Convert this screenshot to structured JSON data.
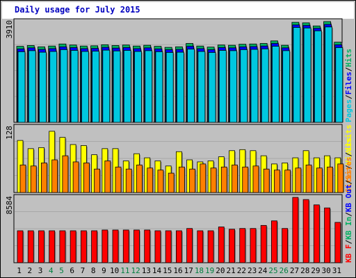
{
  "title": "Daily usage for July 2015",
  "colors": {
    "pages": "#00c8e0",
    "files": "#0000ff",
    "hits": "#00b060",
    "visits": "#ffff00",
    "sites": "#ff8000",
    "kbin": "#00b060",
    "kbout": "#0000ff",
    "kbf": "#ff0000",
    "weekend": "#008040",
    "panel": "#c0c0c0",
    "text": "#000000"
  },
  "chart_data": [
    {
      "type": "bar",
      "panel": "hits",
      "axis_max_label": "3910",
      "ylim": [
        0,
        3910
      ],
      "legend": [
        "Pages",
        "Files",
        "Hits"
      ],
      "categories": [
        "1",
        "2",
        "3",
        "4",
        "5",
        "6",
        "7",
        "8",
        "9",
        "10",
        "11",
        "12",
        "13",
        "14",
        "15",
        "16",
        "17",
        "18",
        "19",
        "20",
        "21",
        "22",
        "23",
        "24",
        "25",
        "26",
        "27",
        "28",
        "29",
        "30",
        "31"
      ],
      "weekend_days": [
        "4",
        "5",
        "11",
        "12",
        "18",
        "19",
        "25",
        "26"
      ],
      "series": [
        {
          "name": "Hits",
          "values": [
            2950,
            2980,
            2930,
            2960,
            3040,
            3000,
            2960,
            2970,
            3010,
            2980,
            3000,
            2960,
            2990,
            2950,
            2910,
            2930,
            3060,
            2960,
            2920,
            3000,
            2990,
            3030,
            3040,
            3060,
            3160,
            2990,
            3880,
            3860,
            3740,
            3910,
            3110
          ]
        },
        {
          "name": "Files",
          "values": [
            2850,
            2890,
            2830,
            2860,
            2930,
            2900,
            2860,
            2870,
            2910,
            2880,
            2900,
            2860,
            2890,
            2850,
            2820,
            2830,
            2950,
            2860,
            2820,
            2900,
            2890,
            2930,
            2940,
            2960,
            3060,
            2890,
            3780,
            3760,
            3650,
            3800,
            3010
          ]
        },
        {
          "name": "Pages",
          "values": [
            2740,
            2780,
            2720,
            2750,
            2820,
            2790,
            2750,
            2760,
            2800,
            2770,
            2790,
            2750,
            2780,
            2740,
            2710,
            2720,
            2840,
            2750,
            2710,
            2790,
            2780,
            2820,
            2830,
            2850,
            2950,
            2780,
            3680,
            3660,
            3550,
            3700,
            2900
          ]
        }
      ]
    },
    {
      "type": "bar",
      "panel": "visits",
      "axis_max_label": "128",
      "ylim": [
        0,
        128
      ],
      "legend": [
        "Visits",
        "Sites"
      ],
      "categories": [
        "1",
        "2",
        "3",
        "4",
        "5",
        "6",
        "7",
        "8",
        "9",
        "10",
        "11",
        "12",
        "13",
        "14",
        "15",
        "16",
        "17",
        "18",
        "19",
        "20",
        "21",
        "22",
        "23",
        "24",
        "25",
        "26",
        "27",
        "28",
        "29",
        "30",
        "31"
      ],
      "series": [
        {
          "name": "Visits",
          "values": [
            102,
            86,
            88,
            120,
            108,
            94,
            92,
            74,
            86,
            86,
            62,
            76,
            68,
            62,
            52,
            80,
            64,
            60,
            62,
            70,
            82,
            84,
            82,
            72,
            56,
            58,
            68,
            82,
            68,
            72,
            68
          ]
        },
        {
          "name": "Sites",
          "values": [
            54,
            52,
            58,
            64,
            72,
            60,
            58,
            46,
            62,
            50,
            46,
            54,
            48,
            44,
            38,
            50,
            46,
            56,
            48,
            50,
            54,
            50,
            52,
            46,
            44,
            44,
            48,
            54,
            48,
            50,
            56
          ]
        }
      ]
    },
    {
      "type": "bar",
      "panel": "kbytes",
      "axis_max_label": "8584",
      "ylim": [
        0,
        8584
      ],
      "legend": [
        "KB F",
        "KB In",
        "KB Out",
        "Sites",
        "Visits"
      ],
      "categories": [
        "1",
        "2",
        "3",
        "4",
        "5",
        "6",
        "7",
        "8",
        "9",
        "10",
        "11",
        "12",
        "13",
        "14",
        "15",
        "16",
        "17",
        "18",
        "19",
        "20",
        "21",
        "22",
        "23",
        "24",
        "25",
        "26",
        "27",
        "28",
        "29",
        "30",
        "31"
      ],
      "series": [
        {
          "name": "KB F",
          "values": [
            4200,
            4200,
            4200,
            4200,
            4200,
            4200,
            4200,
            4200,
            4300,
            4300,
            4300,
            4300,
            4300,
            4200,
            4200,
            4200,
            4500,
            4200,
            4200,
            4700,
            4400,
            4500,
            4500,
            4900,
            5500,
            4500,
            8584,
            8300,
            7600,
            7200,
            5300
          ]
        }
      ]
    }
  ]
}
